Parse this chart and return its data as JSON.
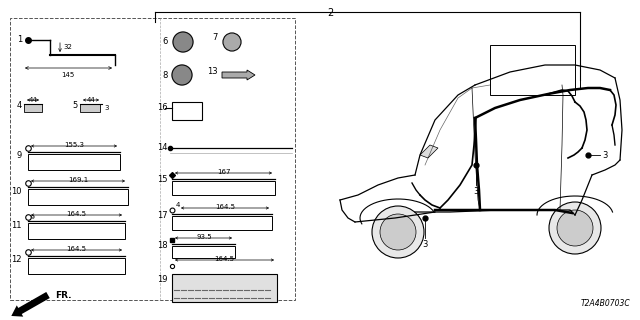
{
  "bg_color": "#ffffff",
  "part_number_label": "T2A4B0703C",
  "fig_w": 6.4,
  "fig_h": 3.2,
  "dpi": 100
}
